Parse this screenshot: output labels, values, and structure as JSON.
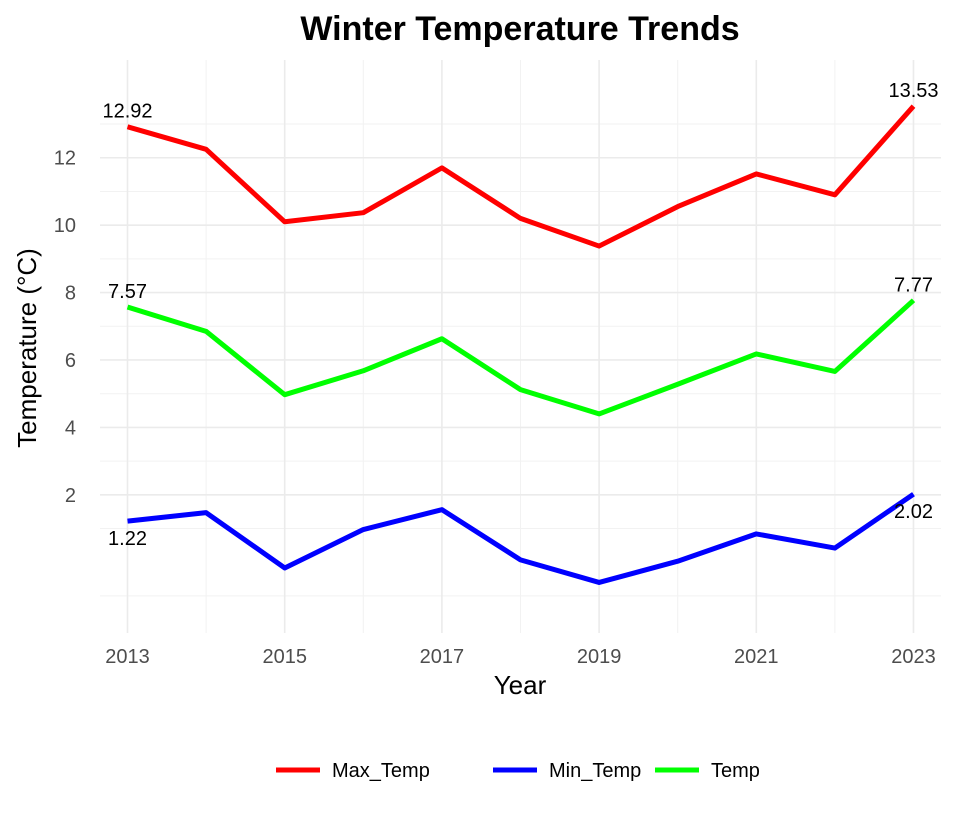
{
  "chart_data": {
    "type": "line",
    "title": "Winter Temperature Trends",
    "xlabel": "Year",
    "ylabel": "Temperature (°C)",
    "x": [
      2013,
      2014,
      2015,
      2016,
      2017,
      2018,
      2019,
      2020,
      2021,
      2022,
      2023
    ],
    "x_ticks": [
      2013,
      2015,
      2017,
      2019,
      2021,
      2023
    ],
    "y_ticks": [
      2,
      4,
      6,
      8,
      10,
      12
    ],
    "xlim": [
      2012.65,
      2023.35
    ],
    "ylim": [
      -2.1,
      14.9
    ],
    "grid": true,
    "legend_position": "bottom",
    "series": [
      {
        "name": "Max_Temp",
        "color": "#ff0000",
        "values": [
          12.92,
          12.25,
          10.1,
          10.37,
          11.7,
          10.2,
          9.38,
          10.55,
          11.52,
          10.9,
          13.53
        ],
        "end_labels": [
          {
            "index": 0,
            "text": "12.92",
            "position": "above"
          },
          {
            "index": 10,
            "text": "13.53",
            "position": "above"
          }
        ]
      },
      {
        "name": "Min_Temp",
        "color": "#0000ff",
        "values": [
          1.22,
          1.47,
          -0.17,
          0.97,
          1.56,
          0.07,
          -0.6,
          0.03,
          0.84,
          0.42,
          2.02
        ],
        "end_labels": [
          {
            "index": 0,
            "text": "1.22",
            "position": "below"
          },
          {
            "index": 10,
            "text": "2.02",
            "position": "below"
          }
        ]
      },
      {
        "name": "Temp",
        "color": "#00ff00",
        "values": [
          7.57,
          6.85,
          4.97,
          5.68,
          6.63,
          5.12,
          4.4,
          5.28,
          6.18,
          5.66,
          7.77
        ],
        "end_labels": [
          {
            "index": 0,
            "text": "7.57",
            "position": "above"
          },
          {
            "index": 10,
            "text": "7.77",
            "position": "above"
          }
        ]
      }
    ]
  }
}
